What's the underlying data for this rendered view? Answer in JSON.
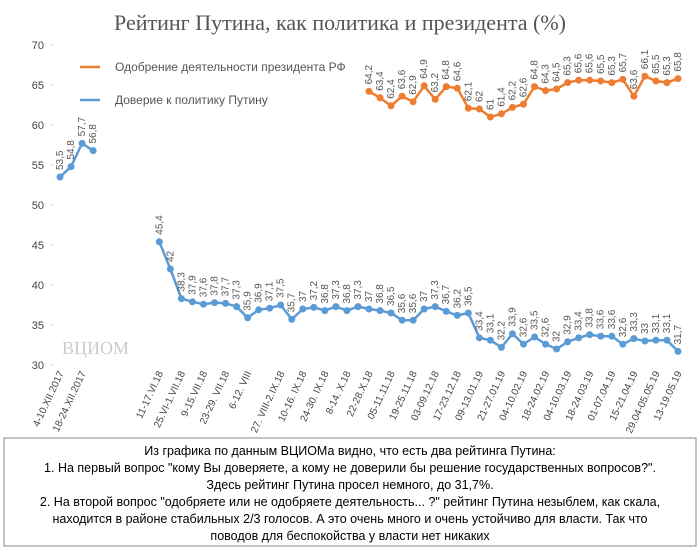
{
  "chart_data": {
    "type": "line",
    "title": "Рейтинг Путина, как политика и президента (%)",
    "watermark": "ВЦИОМ",
    "categories": [
      "4-10.XII.2017",
      null,
      "18-24.XII.2017",
      null,
      null,
      null,
      null,
      null,
      null,
      "11-17.VI.18",
      null,
      "25.VI-1.VII.18",
      null,
      "9-15.VII.18",
      null,
      "23-29. VII.18",
      null,
      "6-12. VIII",
      null,
      null,
      "27. VIII-2.IX.18",
      null,
      "10-16. IX.18",
      null,
      "24-30. IX.18",
      null,
      "8-14. X.18",
      null,
      "22-28.X.18",
      null,
      "05-11.11.18",
      null,
      "19-25.11.18",
      null,
      "03-09.12.18",
      null,
      "17-23.12.18",
      null,
      "09-13.01.19",
      null,
      "21-27.01.19",
      null,
      "04-10.02.19",
      null,
      "18-24.02.19",
      null,
      "04-10.03.19",
      null,
      "18-24.03.19",
      null,
      "01-07.04.19",
      null,
      "15-21.04.19",
      null,
      "29.04-05.05.19",
      null,
      "13-19.05.19"
    ],
    "series": [
      {
        "name": "Одобрение деятельности президента РФ",
        "color": "#ed7d31",
        "values": [
          null,
          null,
          null,
          null,
          null,
          null,
          null,
          null,
          null,
          null,
          null,
          null,
          null,
          null,
          null,
          null,
          null,
          null,
          null,
          null,
          null,
          null,
          null,
          null,
          null,
          null,
          null,
          null,
          64.2,
          63.4,
          62.4,
          63.6,
          62.9,
          64.9,
          63.2,
          64.8,
          64.6,
          62.1,
          62,
          61,
          61.4,
          62.2,
          62.6,
          64.8,
          64.3,
          64.5,
          65.3,
          65.6,
          65.6,
          65.5,
          65.3,
          65.7,
          63.6,
          66.1,
          65.5,
          65.3,
          65.8
        ],
        "value_labels": [
          null,
          null,
          null,
          null,
          null,
          null,
          null,
          null,
          null,
          null,
          null,
          null,
          null,
          null,
          null,
          null,
          null,
          null,
          null,
          null,
          null,
          null,
          null,
          null,
          null,
          null,
          null,
          null,
          "64,2",
          "63,4",
          "62,4",
          "63,6",
          "62,9",
          "64,9",
          "63,2",
          "64,8",
          "64,6",
          "62,1",
          "62",
          "61",
          "61,4",
          "62,2",
          "62,6",
          "64,8",
          "64,3",
          "64,5",
          "65,3",
          "65,6",
          "65,6",
          "65,5",
          "65,3",
          "65,7",
          "63,6",
          "66,1",
          "65,5",
          "65,3",
          "65,8"
        ]
      },
      {
        "name": "Доверие к политику Путину",
        "color": "#5b9bd5",
        "values": [
          53.5,
          54.8,
          57.7,
          56.8,
          null,
          null,
          null,
          null,
          null,
          45.4,
          42,
          38.3,
          37.9,
          37.6,
          37.8,
          37.7,
          37.3,
          35.9,
          36.9,
          37.1,
          37.5,
          35.7,
          37,
          37.2,
          36.8,
          37.3,
          36.8,
          37.3,
          37,
          36.8,
          36.5,
          35.6,
          35.6,
          37,
          37.3,
          36.7,
          36.2,
          36.5,
          33.4,
          33.1,
          32.2,
          33.9,
          32.6,
          33.5,
          32.6,
          32,
          32.9,
          33.4,
          33.8,
          33.6,
          33.6,
          32.6,
          33.3,
          33,
          33.1,
          33.1,
          31.7
        ],
        "value_labels": [
          "53,5",
          "54,8",
          "57,7",
          "56,8",
          null,
          null,
          null,
          null,
          null,
          "45,4",
          "42",
          "38,3",
          "37,9",
          "37,6",
          "37,8",
          "37,7",
          "37,3",
          "35,9",
          "36,9",
          "37,1",
          "37,5",
          "35,7",
          "37",
          "37,2",
          "36,8",
          "37,3",
          "36,8",
          "37,3",
          "37",
          "36,8",
          "36,5",
          "35,6",
          "35,6",
          "37",
          "37,3",
          "36,7",
          "36,2",
          "36,5",
          "33,4",
          "33,1",
          "32,2",
          "33,9",
          "32,6",
          "33,5",
          "32,6",
          "32",
          "32,9",
          "33,4",
          "33,8",
          "33,6",
          "33,6",
          "32,6",
          "33,3",
          "33",
          "33,1",
          "33,1",
          "31,7"
        ]
      }
    ],
    "ylim": [
      30,
      70
    ],
    "yticks": [
      30,
      35,
      40,
      45,
      50,
      55,
      60,
      65,
      70
    ],
    "grid": false,
    "legend": "top-left",
    "notes": [
      "Из графика по данным ВЦИОМа видно, что есть два рейтинга Путина:",
      "1. На первый вопрос \"кому Вы доверяете, а кому не доверили бы решение государственных вопросов?\".",
      "Здесь рейтинг Путина просел немного, до 31,7%.",
      "2. На второй вопрос \"одобряете или не одобряете деятельность... ?\" рейтинг Путина незыблем, как скала,",
      "находится в районе стабильных 2/3 голосов. А это очень много и очень устойчиво для власти. Так что",
      "поводов для беспокойства у власти нет никаких"
    ]
  }
}
